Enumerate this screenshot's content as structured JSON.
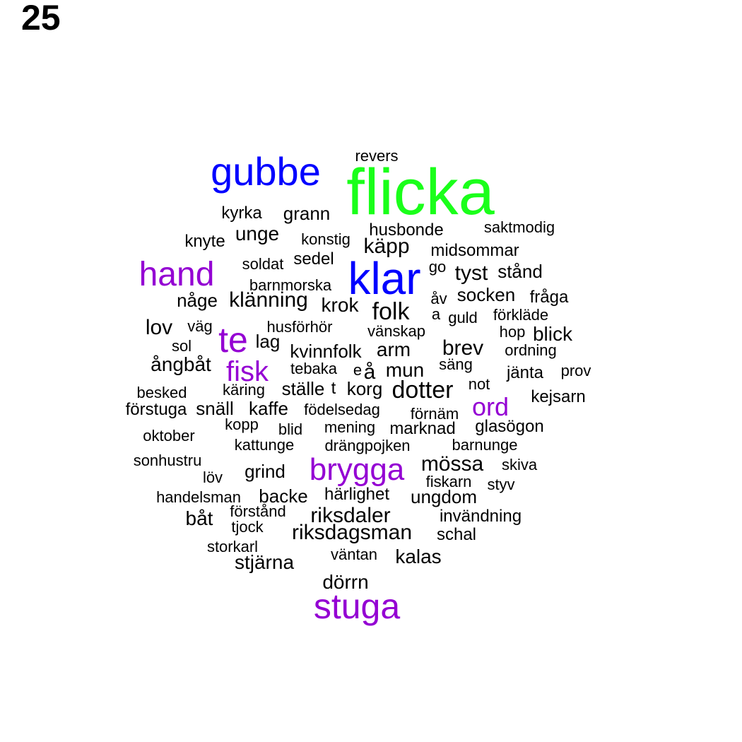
{
  "page_number": "25",
  "colors": {
    "green": "#1aff1a",
    "blue": "#0000ff",
    "purple": "#9400d3",
    "black": "#000000"
  },
  "words": [
    {
      "text": "flicka",
      "color": "green"
    },
    {
      "text": "gubbe",
      "color": "blue"
    },
    {
      "text": "klar",
      "color": "blue"
    },
    {
      "text": "hand",
      "color": "purple"
    },
    {
      "text": "te",
      "color": "purple"
    },
    {
      "text": "fisk",
      "color": "purple"
    },
    {
      "text": "ord",
      "color": "purple"
    },
    {
      "text": "brygga",
      "color": "purple"
    },
    {
      "text": "stuga",
      "color": "purple"
    },
    {
      "text": "revers",
      "color": "black"
    },
    {
      "text": "kyrka",
      "color": "black"
    },
    {
      "text": "grann",
      "color": "black"
    },
    {
      "text": "husbonde",
      "color": "black"
    },
    {
      "text": "saktmodig",
      "color": "black"
    },
    {
      "text": "knyte",
      "color": "black"
    },
    {
      "text": "unge",
      "color": "black"
    },
    {
      "text": "konstig",
      "color": "black"
    },
    {
      "text": "käpp",
      "color": "black"
    },
    {
      "text": "midsommar",
      "color": "black"
    },
    {
      "text": "soldat",
      "color": "black"
    },
    {
      "text": "sedel",
      "color": "black"
    },
    {
      "text": "go",
      "color": "black"
    },
    {
      "text": "tyst",
      "color": "black"
    },
    {
      "text": "stånd",
      "color": "black"
    },
    {
      "text": "barnmorska",
      "color": "black"
    },
    {
      "text": "någe",
      "color": "black"
    },
    {
      "text": "klänning",
      "color": "black"
    },
    {
      "text": "krok",
      "color": "black"
    },
    {
      "text": "folk",
      "color": "black"
    },
    {
      "text": "åv",
      "color": "black"
    },
    {
      "text": "socken",
      "color": "black"
    },
    {
      "text": "fråga",
      "color": "black"
    },
    {
      "text": "a",
      "color": "black"
    },
    {
      "text": "guld",
      "color": "black"
    },
    {
      "text": "förkläde",
      "color": "black"
    },
    {
      "text": "lov",
      "color": "black"
    },
    {
      "text": "väg",
      "color": "black"
    },
    {
      "text": "husförhör",
      "color": "black"
    },
    {
      "text": "vänskap",
      "color": "black"
    },
    {
      "text": "hop",
      "color": "black"
    },
    {
      "text": "blick",
      "color": "black"
    },
    {
      "text": "sol",
      "color": "black"
    },
    {
      "text": "lag",
      "color": "black"
    },
    {
      "text": "kvinnfolk",
      "color": "black"
    },
    {
      "text": "arm",
      "color": "black"
    },
    {
      "text": "brev",
      "color": "black"
    },
    {
      "text": "ordning",
      "color": "black"
    },
    {
      "text": "ångbåt",
      "color": "black"
    },
    {
      "text": "tebaka",
      "color": "black"
    },
    {
      "text": "e",
      "color": "black"
    },
    {
      "text": "å",
      "color": "black"
    },
    {
      "text": "mun",
      "color": "black"
    },
    {
      "text": "säng",
      "color": "black"
    },
    {
      "text": "jänta",
      "color": "black"
    },
    {
      "text": "prov",
      "color": "black"
    },
    {
      "text": "besked",
      "color": "black"
    },
    {
      "text": "käring",
      "color": "black"
    },
    {
      "text": "ställe",
      "color": "black"
    },
    {
      "text": "t",
      "color": "black"
    },
    {
      "text": "korg",
      "color": "black"
    },
    {
      "text": "dotter",
      "color": "black"
    },
    {
      "text": "not",
      "color": "black"
    },
    {
      "text": "kejsarn",
      "color": "black"
    },
    {
      "text": "förstuga",
      "color": "black"
    },
    {
      "text": "snäll",
      "color": "black"
    },
    {
      "text": "kaffe",
      "color": "black"
    },
    {
      "text": "födelsedag",
      "color": "black"
    },
    {
      "text": "förnäm",
      "color": "black"
    },
    {
      "text": "kopp",
      "color": "black"
    },
    {
      "text": "oktober",
      "color": "black"
    },
    {
      "text": "blid",
      "color": "black"
    },
    {
      "text": "mening",
      "color": "black"
    },
    {
      "text": "marknad",
      "color": "black"
    },
    {
      "text": "glasögon",
      "color": "black"
    },
    {
      "text": "kattunge",
      "color": "black"
    },
    {
      "text": "drängpojken",
      "color": "black"
    },
    {
      "text": "barnunge",
      "color": "black"
    },
    {
      "text": "sonhustru",
      "color": "black"
    },
    {
      "text": "grind",
      "color": "black"
    },
    {
      "text": "mössa",
      "color": "black"
    },
    {
      "text": "skiva",
      "color": "black"
    },
    {
      "text": "löv",
      "color": "black"
    },
    {
      "text": "fiskarn",
      "color": "black"
    },
    {
      "text": "styv",
      "color": "black"
    },
    {
      "text": "handelsman",
      "color": "black"
    },
    {
      "text": "backe",
      "color": "black"
    },
    {
      "text": "härlighet",
      "color": "black"
    },
    {
      "text": "ungdom",
      "color": "black"
    },
    {
      "text": "förstånd",
      "color": "black"
    },
    {
      "text": "riksdaler",
      "color": "black"
    },
    {
      "text": "invändning",
      "color": "black"
    },
    {
      "text": "båt",
      "color": "black"
    },
    {
      "text": "tjock",
      "color": "black"
    },
    {
      "text": "riksdagsman",
      "color": "black"
    },
    {
      "text": "schal",
      "color": "black"
    },
    {
      "text": "storkarl",
      "color": "black"
    },
    {
      "text": "väntan",
      "color": "black"
    },
    {
      "text": "kalas",
      "color": "black"
    },
    {
      "text": "stjärna",
      "color": "black"
    },
    {
      "text": "dörrn",
      "color": "black"
    }
  ]
}
